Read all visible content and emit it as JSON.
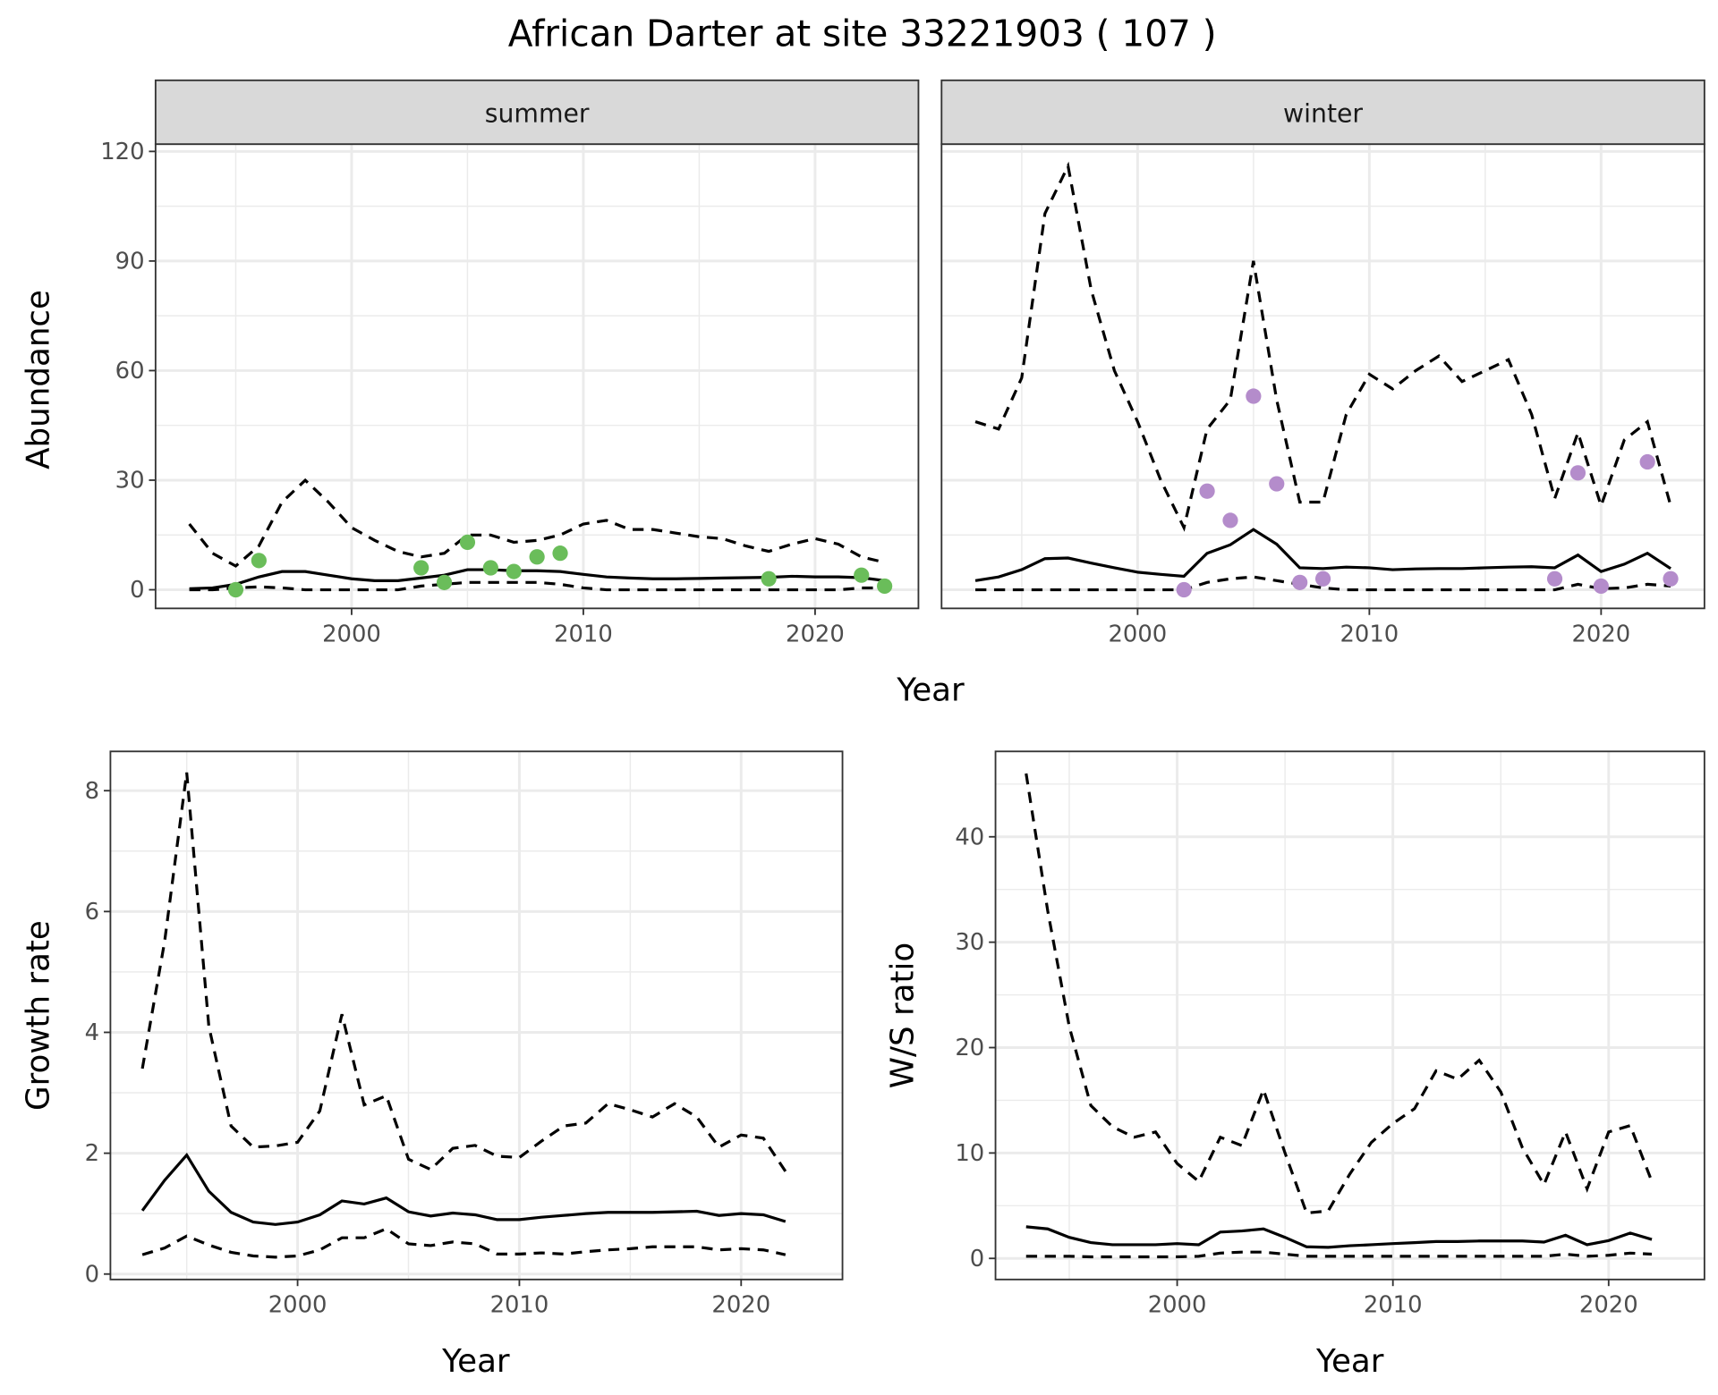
{
  "title": "African Darter at site 33221903 ( 107 )",
  "colors": {
    "summer_points": "#6abd5a",
    "winter_points": "#b48ccb",
    "lines": "#000000",
    "grid": "#ebebeb",
    "strip": "#d9d9d9"
  },
  "chart_data": [
    {
      "type": "line",
      "id": "summer",
      "facet_label": "summer",
      "ylabel": "Abundance",
      "xlabel": "Year",
      "xlim": [
        1991.54,
        2024.46
      ],
      "ylim": [
        -5.1,
        122
      ],
      "xticks": [
        2000,
        2010,
        2020
      ],
      "yticks": [
        0,
        30,
        60,
        90,
        120
      ],
      "x": [
        1993,
        1994,
        1995,
        1996,
        1997,
        1998,
        1999,
        2000,
        2001,
        2002,
        2003,
        2004,
        2005,
        2006,
        2007,
        2008,
        2009,
        2010,
        2011,
        2012,
        2013,
        2014,
        2015,
        2016,
        2017,
        2018,
        2019,
        2020,
        2021,
        2022,
        2023
      ],
      "series": [
        {
          "name": "mean",
          "style": "solid",
          "values": [
            0.3,
            0.5,
            1.5,
            3.5,
            5,
            5,
            4,
            3,
            2.5,
            2.5,
            3.2,
            4,
            5.5,
            5.5,
            5.2,
            5.2,
            5,
            4.2,
            3.5,
            3.2,
            3,
            3,
            3.1,
            3.2,
            3.3,
            3.4,
            3.7,
            3.5,
            3.5,
            3.3,
            2.5
          ]
        },
        {
          "name": "upper",
          "style": "dashed",
          "values": [
            18,
            10,
            6.5,
            12,
            24,
            30,
            24,
            17,
            13.5,
            10.5,
            9,
            10,
            15,
            15,
            13,
            13.5,
            15,
            18,
            19,
            16.5,
            16.5,
            15.5,
            14.5,
            14,
            12,
            10.5,
            12.5,
            14,
            12.5,
            9,
            7.5
          ]
        },
        {
          "name": "lower",
          "style": "dashed",
          "values": [
            0,
            0,
            0.5,
            0.8,
            0.5,
            0,
            0,
            0,
            0,
            0,
            1,
            1.5,
            2,
            2,
            2,
            2,
            1.5,
            0.5,
            0,
            0,
            0,
            0,
            0,
            0,
            0,
            0,
            0,
            0,
            0,
            0.5,
            0.5
          ]
        }
      ],
      "points": {
        "x": [
          1995,
          1996,
          2003,
          2004,
          2005,
          2006,
          2007,
          2008,
          2009,
          2018,
          2022,
          2023
        ],
        "y": [
          0,
          8,
          6,
          2,
          13,
          6,
          5,
          9,
          10,
          3,
          4,
          1
        ]
      }
    },
    {
      "type": "line",
      "id": "winter",
      "facet_label": "winter",
      "ylabel": "",
      "xlabel": "Year",
      "xlim": [
        1991.54,
        2024.46
      ],
      "ylim": [
        -5.1,
        122
      ],
      "xticks": [
        2000,
        2010,
        2020
      ],
      "yticks": [
        0,
        30,
        60,
        90,
        120
      ],
      "x": [
        1993,
        1994,
        1995,
        1996,
        1997,
        1998,
        1999,
        2000,
        2001,
        2002,
        2003,
        2004,
        2005,
        2006,
        2007,
        2008,
        2009,
        2010,
        2011,
        2012,
        2013,
        2014,
        2015,
        2016,
        2017,
        2018,
        2019,
        2020,
        2021,
        2022,
        2023
      ],
      "series": [
        {
          "name": "mean",
          "style": "solid",
          "values": [
            2.5,
            3.5,
            5.5,
            8.5,
            8.7,
            7.3,
            6,
            4.8,
            4.2,
            3.7,
            10,
            12.3,
            16.5,
            12.5,
            6,
            5.8,
            6.2,
            6,
            5.5,
            5.7,
            5.8,
            5.8,
            6,
            6.2,
            6.3,
            6,
            9.5,
            5,
            7,
            10,
            5.8
          ]
        },
        {
          "name": "upper",
          "style": "dashed",
          "values": [
            46,
            44,
            58,
            103,
            116,
            82,
            60,
            46,
            30,
            17,
            44,
            52,
            90,
            52,
            24,
            24,
            48,
            59,
            55,
            60,
            64,
            57,
            60,
            63,
            48,
            25,
            43,
            23,
            41,
            46,
            23
          ]
        },
        {
          "name": "lower",
          "style": "dashed",
          "values": [
            0,
            0,
            0,
            0,
            0,
            0,
            0,
            0,
            0,
            0,
            2,
            3,
            3.5,
            2.5,
            1.5,
            0.5,
            0,
            0,
            0,
            0,
            0,
            0,
            0,
            0,
            0,
            0,
            1.5,
            0.3,
            0.5,
            1.5,
            1
          ]
        }
      ],
      "points": {
        "x": [
          2002,
          2003,
          2004,
          2005,
          2006,
          2007,
          2008,
          2018,
          2019,
          2020,
          2022,
          2023
        ],
        "y": [
          0,
          27,
          19,
          53,
          29,
          2,
          3,
          3,
          32,
          1,
          35,
          3
        ]
      }
    },
    {
      "type": "line",
      "id": "growth",
      "ylabel": "Growth rate",
      "xlabel": "Year",
      "xlim": [
        1991.56,
        2024.57
      ],
      "ylim": [
        -0.09,
        8.65
      ],
      "xticks": [
        2000,
        2010,
        2020
      ],
      "yticks": [
        0,
        2,
        4,
        6,
        8
      ],
      "x": [
        1993,
        1994,
        1995,
        1996,
        1997,
        1998,
        1999,
        2000,
        2001,
        2002,
        2003,
        2004,
        2005,
        2006,
        2007,
        2008,
        2009,
        2010,
        2011,
        2012,
        2013,
        2014,
        2015,
        2016,
        2017,
        2018,
        2019,
        2020,
        2021,
        2022
      ],
      "series": [
        {
          "name": "mean",
          "style": "solid",
          "values": [
            1.05,
            1.55,
            1.97,
            1.37,
            1.02,
            0.86,
            0.82,
            0.86,
            0.98,
            1.21,
            1.16,
            1.26,
            1.03,
            0.96,
            1.01,
            0.98,
            0.9,
            0.9,
            0.94,
            0.97,
            1.0,
            1.02,
            1.02,
            1.02,
            1.03,
            1.04,
            0.97,
            1.0,
            0.98,
            0.87
          ]
        },
        {
          "name": "upper",
          "style": "dashed",
          "values": [
            3.4,
            5.5,
            8.3,
            4.1,
            2.45,
            2.1,
            2.12,
            2.18,
            2.7,
            4.3,
            2.8,
            2.95,
            1.9,
            1.73,
            2.08,
            2.13,
            1.95,
            1.93,
            2.2,
            2.45,
            2.5,
            2.82,
            2.72,
            2.6,
            2.82,
            2.6,
            2.1,
            2.3,
            2.25,
            1.7
          ]
        },
        {
          "name": "lower",
          "style": "dashed",
          "values": [
            0.32,
            0.43,
            0.63,
            0.48,
            0.36,
            0.3,
            0.28,
            0.3,
            0.4,
            0.6,
            0.6,
            0.75,
            0.5,
            0.47,
            0.53,
            0.5,
            0.33,
            0.33,
            0.35,
            0.33,
            0.37,
            0.4,
            0.42,
            0.45,
            0.45,
            0.45,
            0.4,
            0.42,
            0.4,
            0.32
          ]
        }
      ]
    },
    {
      "type": "line",
      "id": "ws",
      "ylabel": "W/S ratio",
      "xlabel": "Year",
      "xlim": [
        1991.58,
        2024.44
      ],
      "ylim": [
        -2.0,
        48.1
      ],
      "xticks": [
        2000,
        2010,
        2020
      ],
      "yticks": [
        0,
        10,
        20,
        30,
        40
      ],
      "x": [
        1993,
        1994,
        1995,
        1996,
        1997,
        1998,
        1999,
        2000,
        2001,
        2002,
        2003,
        2004,
        2005,
        2006,
        2007,
        2008,
        2009,
        2010,
        2011,
        2012,
        2013,
        2014,
        2015,
        2016,
        2017,
        2018,
        2019,
        2020,
        2021,
        2022
      ],
      "series": [
        {
          "name": "mean",
          "style": "solid",
          "values": [
            3,
            2.8,
            2,
            1.5,
            1.3,
            1.3,
            1.3,
            1.4,
            1.3,
            2.5,
            2.6,
            2.8,
            2,
            1.1,
            1.05,
            1.2,
            1.3,
            1.4,
            1.5,
            1.6,
            1.6,
            1.65,
            1.65,
            1.65,
            1.55,
            2.2,
            1.3,
            1.7,
            2.4,
            1.8
          ]
        },
        {
          "name": "upper",
          "style": "dashed",
          "values": [
            46,
            33,
            22,
            14.5,
            12.5,
            11.5,
            12,
            9,
            7.3,
            11.5,
            10.7,
            16,
            10,
            4.3,
            4.5,
            8,
            11,
            12.8,
            14.2,
            17.8,
            17,
            18.8,
            15.8,
            10.5,
            7,
            12,
            6.6,
            12,
            12.6,
            7.3
          ]
        },
        {
          "name": "lower",
          "style": "dashed",
          "values": [
            0.2,
            0.2,
            0.2,
            0.15,
            0.15,
            0.15,
            0.15,
            0.15,
            0.2,
            0.5,
            0.6,
            0.6,
            0.4,
            0.2,
            0.2,
            0.2,
            0.2,
            0.2,
            0.2,
            0.2,
            0.2,
            0.2,
            0.2,
            0.2,
            0.2,
            0.4,
            0.2,
            0.3,
            0.5,
            0.4
          ]
        }
      ]
    }
  ]
}
